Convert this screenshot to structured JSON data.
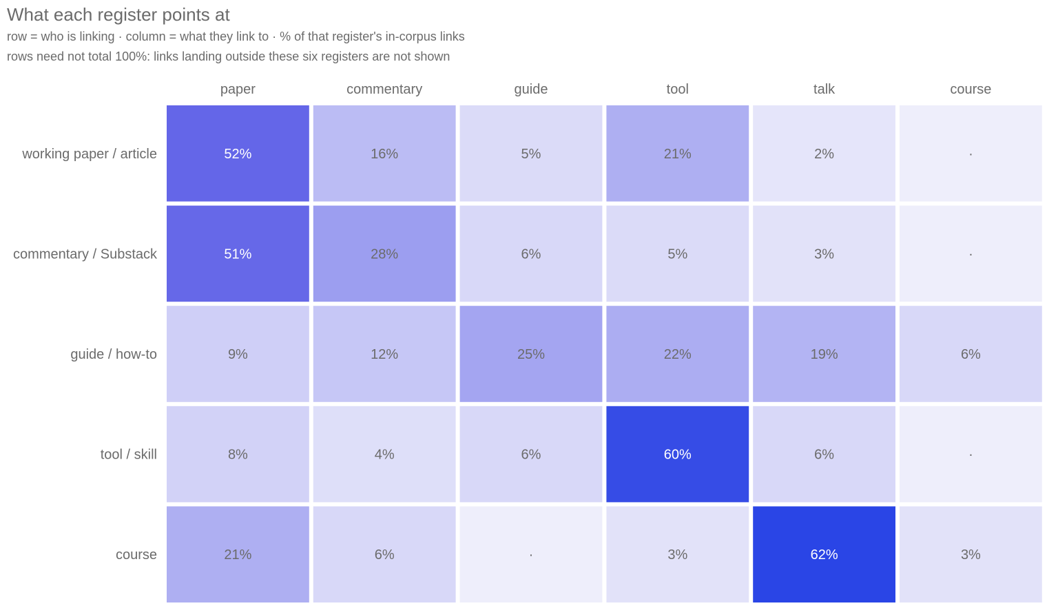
{
  "chart_data": {
    "type": "heatmap",
    "title": "What each register points at",
    "subtitle": [
      "row = who is linking · column = what they link to · % of that register's in-corpus links",
      "rows need not total 100%: links landing outside these six registers are not shown"
    ],
    "columns": [
      "paper",
      "commentary",
      "guide",
      "tool",
      "talk",
      "course"
    ],
    "rows": [
      "working paper / article",
      "commentary / Substack",
      "guide / how-to",
      "tool / skill",
      "course"
    ],
    "values": [
      [
        52,
        16,
        5,
        21,
        2,
        null
      ],
      [
        51,
        28,
        6,
        5,
        3,
        null
      ],
      [
        9,
        12,
        25,
        22,
        19,
        6
      ],
      [
        8,
        4,
        6,
        60,
        6,
        null
      ],
      [
        21,
        6,
        null,
        3,
        62,
        3
      ]
    ],
    "missing_label": "·",
    "value_suffix": "%",
    "color_low": "#eeeefb",
    "color_mid": "#6466e8",
    "color_high": "#2a45e6"
  }
}
